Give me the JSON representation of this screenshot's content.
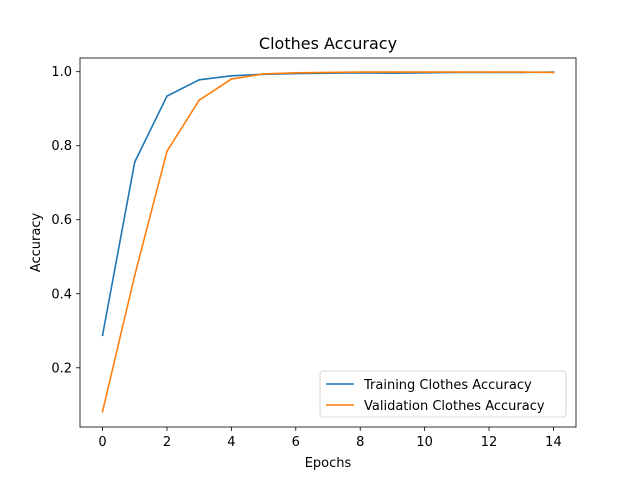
{
  "chart_data": {
    "type": "line",
    "title": "Clothes Accuracy",
    "xlabel": "Epochs",
    "ylabel": "Accuracy",
    "xlim": [
      -0.7,
      14.7
    ],
    "ylim": [
      0.04,
      1.037
    ],
    "x_ticks": [
      0,
      2,
      4,
      6,
      8,
      10,
      12,
      14
    ],
    "x_tick_labels": [
      "0",
      "2",
      "4",
      "6",
      "8",
      "10",
      "12",
      "14"
    ],
    "y_ticks": [
      0.2,
      0.4,
      0.6,
      0.8,
      1.0
    ],
    "y_tick_labels": [
      "0.2",
      "0.4",
      "0.6",
      "0.8",
      "1.0"
    ],
    "grid": false,
    "legend_position": "lower-right",
    "x": [
      0,
      1,
      2,
      3,
      4,
      5,
      6,
      7,
      8,
      9,
      10,
      11,
      12,
      13,
      14
    ],
    "series": [
      {
        "name": "Training Clothes Accuracy",
        "color": "#1f77b4",
        "values": [
          0.288,
          0.756,
          0.934,
          0.978,
          0.989,
          0.993,
          0.995,
          0.996,
          0.997,
          0.996,
          0.997,
          0.998,
          0.998,
          0.998,
          0.999
        ]
      },
      {
        "name": "Validation Clothes Accuracy",
        "color": "#ff7f0e",
        "values": [
          0.082,
          0.45,
          0.785,
          0.923,
          0.98,
          0.994,
          0.997,
          0.998,
          0.999,
          0.999,
          0.999,
          0.999,
          0.999,
          0.999,
          0.998
        ]
      }
    ]
  }
}
